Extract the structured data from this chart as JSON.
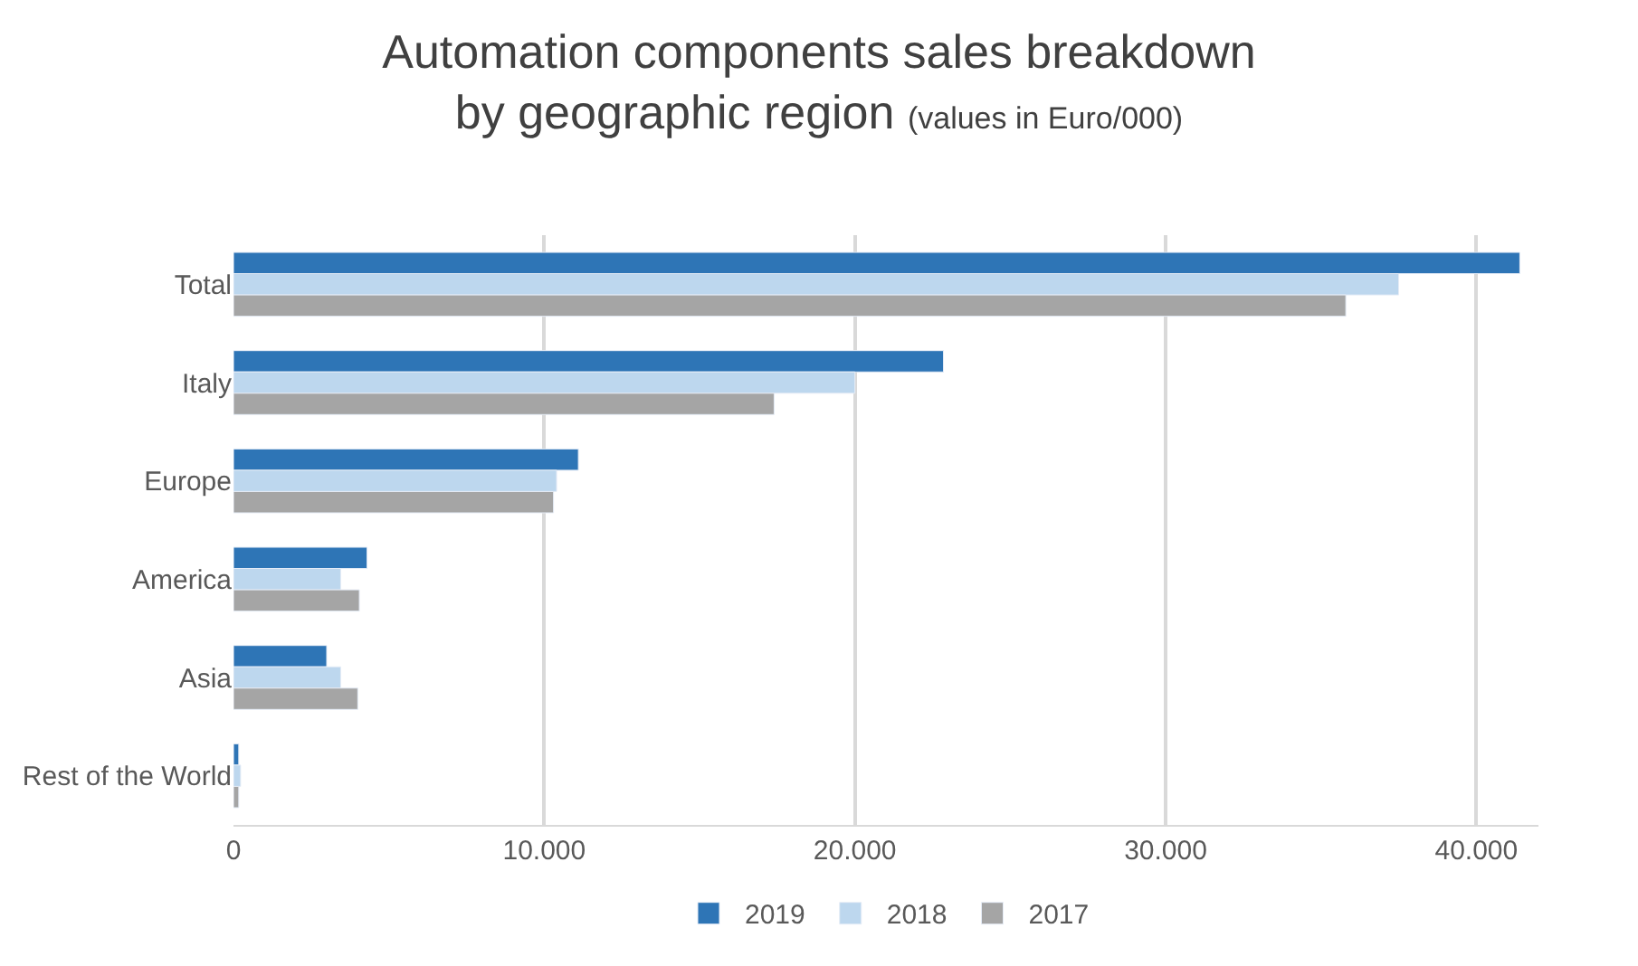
{
  "chart_data": {
    "type": "bar",
    "orientation": "horizontal",
    "title": "Automation components sales breakdown by geographic region",
    "subtitle": "(values in Euro/000)",
    "categories": [
      "Total",
      "Italy",
      "Europe",
      "America",
      "Asia",
      "Rest of the World"
    ],
    "series": [
      {
        "name": "2019",
        "color": "#2e75b6",
        "values": [
          41400,
          22850,
          11100,
          4300,
          3000,
          170
        ]
      },
      {
        "name": "2018",
        "color": "#bdd7ee",
        "values": [
          37500,
          20000,
          10400,
          3450,
          3450,
          230
        ]
      },
      {
        "name": "2017",
        "color": "#a5a5a5",
        "values": [
          35800,
          17400,
          10300,
          4050,
          4000,
          170
        ]
      }
    ],
    "xlim": [
      0,
      42000
    ],
    "xticks": [
      0,
      {
        "value": 10000,
        "label": "10.000"
      },
      {
        "value": 20000,
        "label": "20.000"
      },
      {
        "value": 30000,
        "label": "30.000"
      },
      {
        "value": 40000,
        "label": "40.000"
      }
    ],
    "grid": "x",
    "legend": "bottom"
  }
}
